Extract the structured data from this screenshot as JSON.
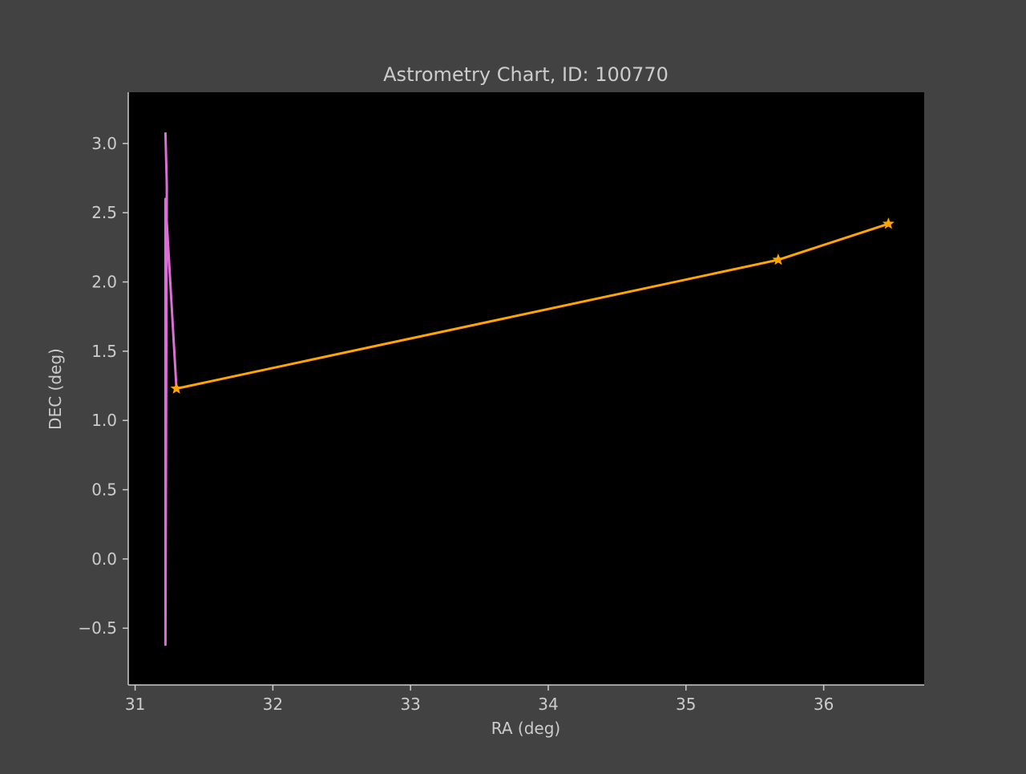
{
  "chart_data": {
    "type": "line",
    "title": "Astrometry Chart, ID: 100770",
    "xlabel": "RA (deg)",
    "ylabel": "DEC (deg)",
    "xlim": [
      30.95,
      36.73
    ],
    "ylim": [
      -0.91,
      3.37
    ],
    "xticks": [
      31,
      32,
      33,
      34,
      35,
      36
    ],
    "yticks": [
      -0.5,
      0.0,
      0.5,
      1.0,
      1.5,
      2.0,
      2.5,
      3.0
    ],
    "ytick_labels": [
      "−0.5",
      "0.0",
      "0.5",
      "1.0",
      "1.5",
      "2.0",
      "2.5",
      "3.0"
    ],
    "grid": false,
    "series": [
      {
        "color": "#DA70D6",
        "marker": "none",
        "x": [
          31.22,
          31.23,
          31.22,
          31.22,
          31.3
        ],
        "y": [
          3.08,
          2.7,
          -0.62,
          2.6,
          1.23
        ]
      },
      {
        "color": "#FFA500",
        "marker": "star",
        "x": [
          31.3,
          35.67,
          36.47
        ],
        "y": [
          1.23,
          2.16,
          2.42
        ]
      }
    ]
  }
}
